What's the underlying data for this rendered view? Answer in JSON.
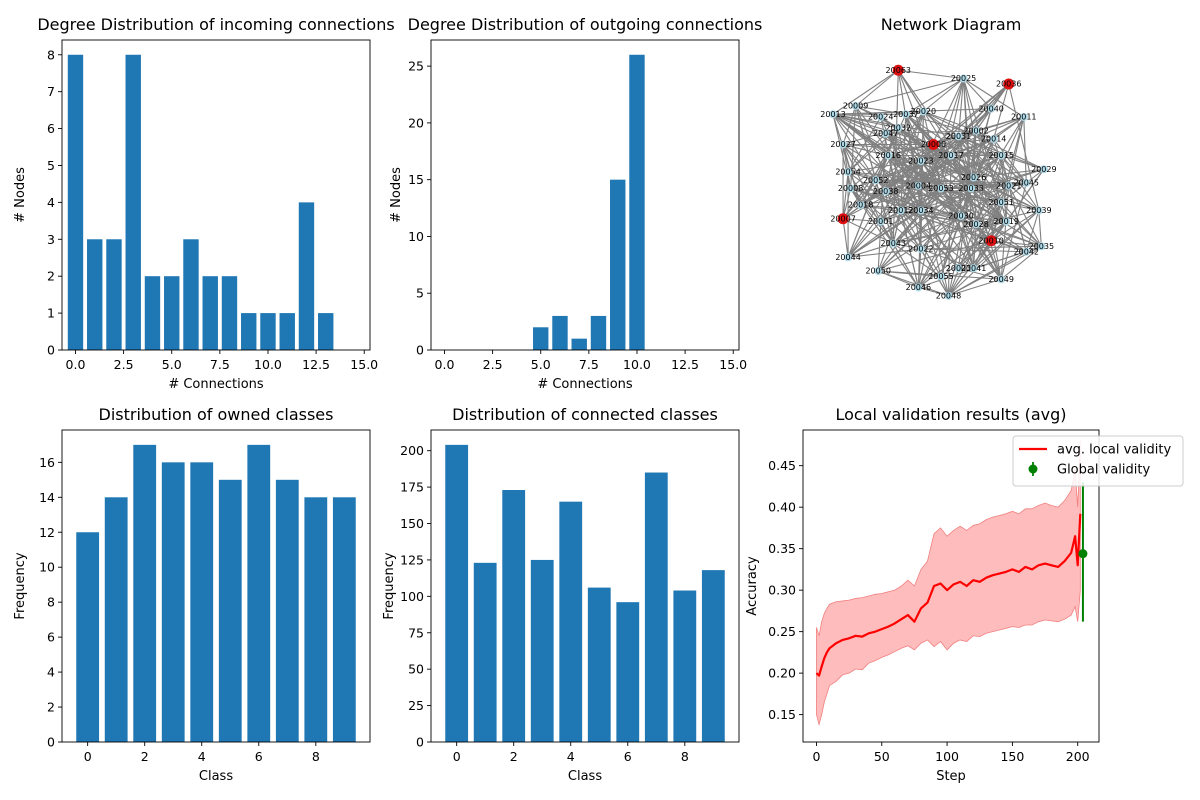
{
  "colors": {
    "bar": "#1f77b4",
    "edge": "#808080",
    "node": "#add8e6",
    "highlight": "#e01010",
    "line": "#ff0000",
    "band": "#ffb0b0",
    "global": "#008000"
  },
  "chart_data": [
    {
      "id": "incoming",
      "type": "bar",
      "title": "Degree Distribution of incoming connections",
      "xlabel": "# Connections",
      "ylabel": "# Nodes",
      "x": [
        0,
        1,
        2,
        3,
        4,
        5,
        6,
        7,
        8,
        9,
        10,
        11,
        12,
        13
      ],
      "values": [
        8,
        3,
        3,
        8,
        2,
        2,
        3,
        2,
        2,
        1,
        1,
        1,
        4,
        1
      ],
      "xlim": [
        -0.7,
        15.3
      ],
      "ylim": [
        0,
        8.4
      ],
      "xticks": [
        0.0,
        2.5,
        5.0,
        7.5,
        10.0,
        12.5,
        15.0
      ],
      "xtick_labels": [
        "0.0",
        "2.5",
        "5.0",
        "7.5",
        "10.0",
        "12.5",
        "15.0"
      ],
      "yticks": [
        0,
        1,
        2,
        3,
        4,
        5,
        6,
        7,
        8
      ],
      "ytick_labels": [
        "0",
        "1",
        "2",
        "3",
        "4",
        "5",
        "6",
        "7",
        "8"
      ]
    },
    {
      "id": "outgoing",
      "type": "bar",
      "title": "Degree Distribution of outgoing connections",
      "xlabel": "# Connections",
      "ylabel": "# Nodes",
      "x": [
        0,
        1,
        2,
        3,
        4,
        5,
        6,
        7,
        8,
        9,
        10,
        11,
        12,
        13,
        14
      ],
      "values": [
        0,
        0,
        0,
        0,
        0,
        2,
        3,
        1,
        3,
        15,
        26,
        0,
        0,
        0,
        0
      ],
      "xlim": [
        -0.7,
        15.3
      ],
      "ylim": [
        0,
        27.3
      ],
      "xticks": [
        0.0,
        2.5,
        5.0,
        7.5,
        10.0,
        12.5,
        15.0
      ],
      "xtick_labels": [
        "0.0",
        "2.5",
        "5.0",
        "7.5",
        "10.0",
        "12.5",
        "15.0"
      ],
      "yticks": [
        0,
        5,
        10,
        15,
        20,
        25
      ],
      "ytick_labels": [
        "0",
        "5",
        "10",
        "15",
        "20",
        "25"
      ]
    },
    {
      "id": "network",
      "type": "network",
      "title": "Network Diagram",
      "nodes": [
        {
          "id": "20063",
          "x": 0.28,
          "y": 0.03,
          "highlight": true
        },
        {
          "id": "20025",
          "x": 0.54,
          "y": 0.06
        },
        {
          "id": "20036",
          "x": 0.72,
          "y": 0.08,
          "highlight": true
        },
        {
          "id": "20009",
          "x": 0.11,
          "y": 0.16
        },
        {
          "id": "20013",
          "x": 0.02,
          "y": 0.19
        },
        {
          "id": "20040",
          "x": 0.65,
          "y": 0.17
        },
        {
          "id": "20011",
          "x": 0.78,
          "y": 0.2
        },
        {
          "id": "20020",
          "x": 0.38,
          "y": 0.18
        },
        {
          "id": "20037",
          "x": 0.31,
          "y": 0.19
        },
        {
          "id": "20024",
          "x": 0.21,
          "y": 0.2
        },
        {
          "id": "20032",
          "x": 0.28,
          "y": 0.24
        },
        {
          "id": "20047",
          "x": 0.23,
          "y": 0.26
        },
        {
          "id": "20002",
          "x": 0.59,
          "y": 0.25
        },
        {
          "id": "20031",
          "x": 0.52,
          "y": 0.27
        },
        {
          "id": "20014",
          "x": 0.66,
          "y": 0.28
        },
        {
          "id": "20000",
          "x": 0.42,
          "y": 0.3,
          "highlight": true
        },
        {
          "id": "20027",
          "x": 0.06,
          "y": 0.3
        },
        {
          "id": "20016",
          "x": 0.24,
          "y": 0.34
        },
        {
          "id": "20017",
          "x": 0.49,
          "y": 0.34
        },
        {
          "id": "20015",
          "x": 0.69,
          "y": 0.34
        },
        {
          "id": "20023",
          "x": 0.37,
          "y": 0.36
        },
        {
          "id": "20054",
          "x": 0.08,
          "y": 0.4
        },
        {
          "id": "20029",
          "x": 0.86,
          "y": 0.39
        },
        {
          "id": "20026",
          "x": 0.58,
          "y": 0.42
        },
        {
          "id": "20052",
          "x": 0.19,
          "y": 0.43
        },
        {
          "id": "20045",
          "x": 0.79,
          "y": 0.44
        },
        {
          "id": "20008",
          "x": 0.09,
          "y": 0.46
        },
        {
          "id": "20004",
          "x": 0.36,
          "y": 0.45
        },
        {
          "id": "20038",
          "x": 0.23,
          "y": 0.47
        },
        {
          "id": "20053",
          "x": 0.45,
          "y": 0.46
        },
        {
          "id": "20033",
          "x": 0.57,
          "y": 0.46
        },
        {
          "id": "20021",
          "x": 0.72,
          "y": 0.45
        },
        {
          "id": "20051",
          "x": 0.69,
          "y": 0.51
        },
        {
          "id": "20018",
          "x": 0.13,
          "y": 0.52
        },
        {
          "id": "20012",
          "x": 0.29,
          "y": 0.54
        },
        {
          "id": "20034",
          "x": 0.37,
          "y": 0.54
        },
        {
          "id": "20039",
          "x": 0.84,
          "y": 0.54
        },
        {
          "id": "20030",
          "x": 0.53,
          "y": 0.56
        },
        {
          "id": "20007",
          "x": 0.06,
          "y": 0.57,
          "highlight": true
        },
        {
          "id": "20001",
          "x": 0.21,
          "y": 0.58
        },
        {
          "id": "20019",
          "x": 0.71,
          "y": 0.58
        },
        {
          "id": "20028",
          "x": 0.59,
          "y": 0.59
        },
        {
          "id": "20010",
          "x": 0.65,
          "y": 0.65,
          "highlight": true
        },
        {
          "id": "20043",
          "x": 0.26,
          "y": 0.66
        },
        {
          "id": "20022",
          "x": 0.37,
          "y": 0.68
        },
        {
          "id": "20035",
          "x": 0.85,
          "y": 0.67
        },
        {
          "id": "20042",
          "x": 0.79,
          "y": 0.69
        },
        {
          "id": "20044",
          "x": 0.08,
          "y": 0.71
        },
        {
          "id": "20050",
          "x": 0.2,
          "y": 0.76
        },
        {
          "id": "20003",
          "x": 0.52,
          "y": 0.75
        },
        {
          "id": "20041",
          "x": 0.58,
          "y": 0.75
        },
        {
          "id": "20055",
          "x": 0.45,
          "y": 0.78
        },
        {
          "id": "20049",
          "x": 0.69,
          "y": 0.79
        },
        {
          "id": "20046",
          "x": 0.36,
          "y": 0.82
        },
        {
          "id": "20048",
          "x": 0.48,
          "y": 0.85
        }
      ]
    },
    {
      "id": "owned",
      "type": "bar",
      "title": "Distribution of owned classes",
      "xlabel": "Class",
      "ylabel": "Frequency",
      "x": [
        0,
        1,
        2,
        3,
        4,
        5,
        6,
        7,
        8,
        9
      ],
      "values": [
        12,
        14,
        17,
        16,
        16,
        15,
        17,
        15,
        14,
        14
      ],
      "xlim": [
        -0.9,
        9.9
      ],
      "ylim": [
        0,
        17.85
      ],
      "xticks": [
        0,
        2,
        4,
        6,
        8
      ],
      "xtick_labels": [
        "0",
        "2",
        "4",
        "6",
        "8"
      ],
      "yticks": [
        0,
        2,
        4,
        6,
        8,
        10,
        12,
        14,
        16
      ],
      "ytick_labels": [
        "0",
        "2",
        "4",
        "6",
        "8",
        "10",
        "12",
        "14",
        "16"
      ]
    },
    {
      "id": "connected",
      "type": "bar",
      "title": "Distribution of connected classes",
      "xlabel": "Class",
      "ylabel": "Frequency",
      "x": [
        0,
        1,
        2,
        3,
        4,
        5,
        6,
        7,
        8,
        9
      ],
      "values": [
        204,
        123,
        173,
        125,
        165,
        106,
        96,
        185,
        104,
        118
      ],
      "xlim": [
        -0.9,
        9.9
      ],
      "ylim": [
        0,
        214.2
      ],
      "xticks": [
        0,
        2,
        4,
        6,
        8
      ],
      "xtick_labels": [
        "0",
        "2",
        "4",
        "6",
        "8"
      ],
      "yticks": [
        0,
        25,
        50,
        75,
        100,
        125,
        150,
        175,
        200
      ],
      "ytick_labels": [
        "0",
        "25",
        "50",
        "75",
        "100",
        "125",
        "150",
        "175",
        "200"
      ]
    },
    {
      "id": "validation",
      "type": "line",
      "title": "Local validation results (avg)",
      "xlabel": "Step",
      "ylabel": "Accuracy",
      "xlim": [
        -10.3,
        216.3
      ],
      "ylim": [
        0.117,
        0.493
      ],
      "xticks": [
        0,
        50,
        100,
        150,
        200
      ],
      "xtick_labels": [
        "0",
        "50",
        "100",
        "150",
        "200"
      ],
      "yticks": [
        0.15,
        0.2,
        0.25,
        0.3,
        0.35,
        0.4,
        0.45
      ],
      "ytick_labels": [
        "0.15",
        "0.20",
        "0.25",
        "0.30",
        "0.35",
        "0.40",
        "0.45"
      ],
      "legend_position": "upper-right",
      "series": [
        {
          "name": "avg. local validity",
          "x": [
            0,
            2,
            4,
            6,
            8,
            10,
            15,
            20,
            25,
            30,
            35,
            40,
            45,
            50,
            55,
            60,
            65,
            70,
            75,
            80,
            85,
            90,
            95,
            100,
            105,
            110,
            115,
            120,
            125,
            130,
            135,
            140,
            145,
            150,
            155,
            160,
            165,
            170,
            175,
            180,
            185,
            190,
            195,
            198,
            200,
            202
          ],
          "y": [
            0.2,
            0.197,
            0.208,
            0.218,
            0.225,
            0.23,
            0.236,
            0.24,
            0.242,
            0.245,
            0.244,
            0.248,
            0.25,
            0.253,
            0.256,
            0.26,
            0.265,
            0.27,
            0.262,
            0.278,
            0.285,
            0.305,
            0.308,
            0.3,
            0.307,
            0.31,
            0.305,
            0.312,
            0.31,
            0.315,
            0.318,
            0.32,
            0.322,
            0.325,
            0.322,
            0.328,
            0.325,
            0.33,
            0.332,
            0.33,
            0.328,
            0.335,
            0.345,
            0.365,
            0.33,
            0.392
          ],
          "lower": [
            0.15,
            0.138,
            0.15,
            0.165,
            0.175,
            0.185,
            0.19,
            0.198,
            0.2,
            0.205,
            0.204,
            0.212,
            0.215,
            0.219,
            0.222,
            0.226,
            0.23,
            0.233,
            0.228,
            0.236,
            0.24,
            0.232,
            0.238,
            0.228,
            0.236,
            0.24,
            0.238,
            0.245,
            0.244,
            0.248,
            0.25,
            0.252,
            0.254,
            0.256,
            0.255,
            0.258,
            0.258,
            0.262,
            0.264,
            0.263,
            0.262,
            0.265,
            0.27,
            0.28,
            0.262,
            0.3
          ],
          "upper": [
            0.255,
            0.245,
            0.262,
            0.272,
            0.278,
            0.283,
            0.286,
            0.287,
            0.288,
            0.29,
            0.291,
            0.293,
            0.295,
            0.296,
            0.298,
            0.3,
            0.305,
            0.312,
            0.305,
            0.325,
            0.335,
            0.368,
            0.375,
            0.365,
            0.372,
            0.377,
            0.372,
            0.378,
            0.38,
            0.385,
            0.388,
            0.39,
            0.392,
            0.395,
            0.392,
            0.398,
            0.398,
            0.402,
            0.405,
            0.402,
            0.4,
            0.408,
            0.42,
            0.445,
            0.4,
            0.48
          ]
        },
        {
          "name": "Global validity",
          "type": "errorbar",
          "x": [
            204
          ],
          "y": [
            0.344
          ],
          "err_low": [
            0.262
          ],
          "err_high": [
            0.43
          ]
        }
      ]
    }
  ]
}
